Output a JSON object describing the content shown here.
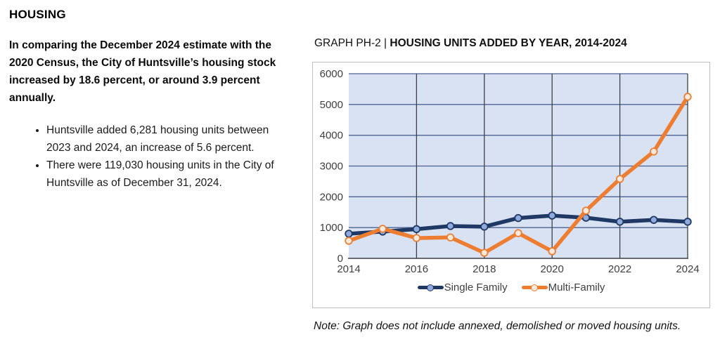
{
  "left_column": {
    "heading": "HOUSING",
    "intro": "In comparing the December 2024 estimate with the 2020 Census, the City of Huntsville’s housing stock increased by 18.6 percent, or around 3.9 percent annually.",
    "bullets": [
      "Huntsville added 6,281 housing units between 2023 and 2024, an increase of 5.6 percent.",
      "There were 119,030 housing units in the City of Huntsville as of December 31, 2024."
    ]
  },
  "chart_section": {
    "title_prefix": "GRAPH PH-2 | ",
    "title_main": "HOUSING UNITS ADDED BY YEAR, 2014-2024",
    "note": "Note: Graph does not include annexed, demolished or moved housing units."
  },
  "chart_data": {
    "type": "line",
    "title": "GRAPH PH-2 | HOUSING UNITS ADDED BY YEAR, 2014-2024",
    "x": [
      2014,
      2015,
      2016,
      2017,
      2018,
      2019,
      2020,
      2021,
      2022,
      2023,
      2024
    ],
    "series": [
      {
        "name": "Single Family",
        "color": "#1F3864",
        "marker_fill": "#8FAADC",
        "values": [
          800,
          870,
          950,
          1050,
          1030,
          1310,
          1390,
          1320,
          1190,
          1250,
          1190
        ]
      },
      {
        "name": "Multi-Family",
        "color": "#ED7D31",
        "marker_fill": "#FBE9DC",
        "values": [
          570,
          960,
          660,
          680,
          180,
          820,
          230,
          1550,
          2580,
          3470,
          5250
        ]
      }
    ],
    "ylim": [
      0,
      6000
    ],
    "yticks": [
      0,
      1000,
      2000,
      3000,
      4000,
      5000,
      6000
    ],
    "xticks": [
      2014,
      2016,
      2018,
      2020,
      2022,
      2024
    ],
    "xlabel": "",
    "ylabel": "",
    "plot_bg": "#D9E2F3",
    "hgrid_color": "#4D6292",
    "vgrid_color": "#3F3F46",
    "axis_color": "#3F3F46",
    "tick_color": "#3F3F3F",
    "grid": true,
    "legend_position": "bottom"
  }
}
